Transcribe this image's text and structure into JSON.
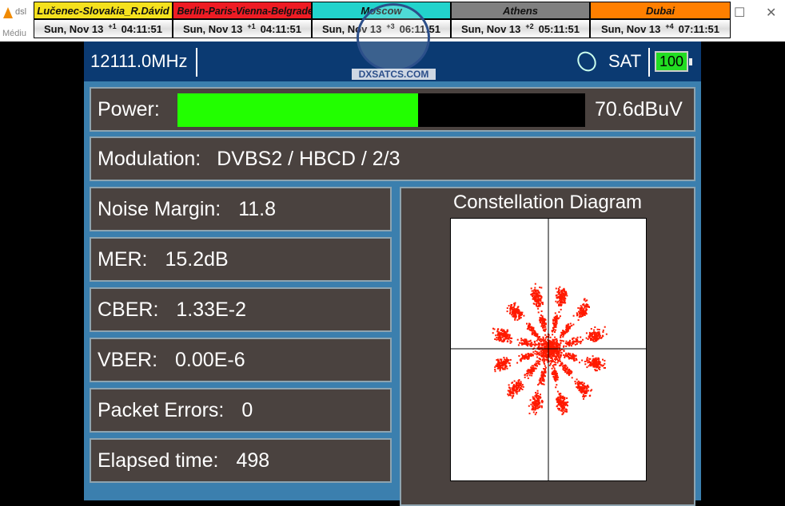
{
  "window": {
    "app_title": "dsl",
    "menu_label": "Médiu"
  },
  "clocks": [
    {
      "city": "Lučenec-Slovakia_R.Dávid",
      "color": "#f5e11e",
      "date": "Sun, Nov 13",
      "offset": "+1",
      "time": "04:11:51"
    },
    {
      "city": "Berlin-Paris-Vienna-Belgrade",
      "color": "#ee1c24",
      "date": "Sun, Nov 13",
      "offset": "+1",
      "time": "04:11:51"
    },
    {
      "city": "Moscow",
      "color": "#22d3cc",
      "date": "Sun, Nov 13",
      "offset": "+3",
      "time": "06:11:51"
    },
    {
      "city": "Athens",
      "color": "#808080",
      "date": "Sun, Nov 13",
      "offset": "+2",
      "time": "05:11:51"
    },
    {
      "city": "Dubai",
      "color": "#ff7f00",
      "date": "Sun, Nov 13",
      "offset": "+4",
      "time": "07:11:51"
    }
  ],
  "logo": {
    "text": "DXSATCS.COM"
  },
  "device": {
    "frequency": "12111.0MHz",
    "mode": "SAT",
    "battery": "100",
    "power": {
      "label": "Power:",
      "value": "70.6dBuV",
      "level_percent": 59
    },
    "modulation": {
      "label": "Modulation:",
      "value": "DVBS2 / HBCD / 2/3"
    },
    "metrics": [
      {
        "label": "Noise Margin:",
        "value": "11.8"
      },
      {
        "label": "MER:",
        "value": "15.2dB"
      },
      {
        "label": "CBER:",
        "value": "1.33E-2"
      },
      {
        "label": "VBER:",
        "value": "0.00E-6"
      },
      {
        "label": "Packet Errors:",
        "value": "0"
      },
      {
        "label": "Elapsed time:",
        "value": "498"
      }
    ],
    "constellation": {
      "title": "Constellation Diagram",
      "point_color": "#ff1a00"
    }
  }
}
